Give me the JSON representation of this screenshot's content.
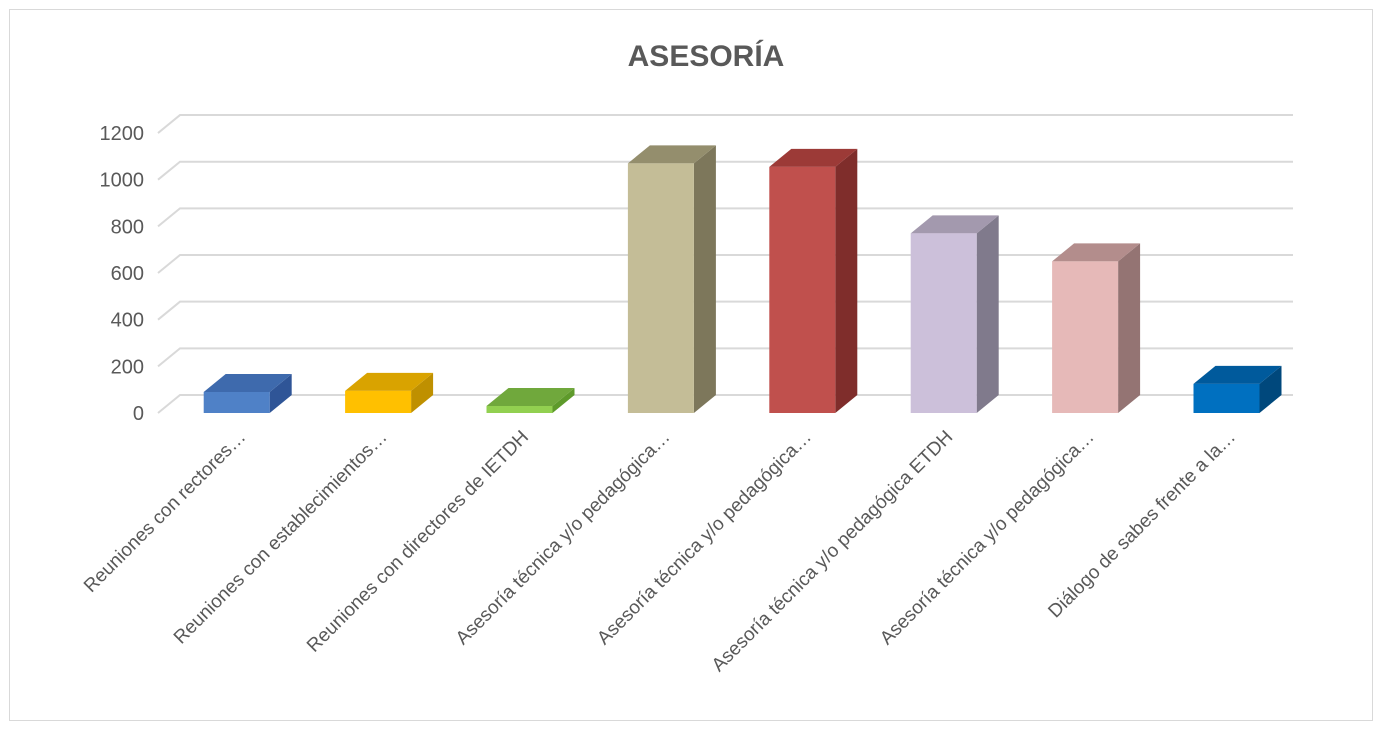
{
  "chart_data": {
    "type": "bar",
    "title": "ASESORÍA",
    "categories": [
      "Reuniones con rectores…",
      "Reuniones con establecimientos…",
      "Reuniones con directores de IETDH",
      "Asesoría técnica y/o pedagógica…",
      "Asesoría técnica y/o pedagógica…",
      "Asesoría técnica y/o pedagógica ETDH",
      "Asesoría técnica y/o pedagógica…",
      "Diálogo de sabes frente a la…"
    ],
    "values": [
      90,
      95,
      30,
      1070,
      1055,
      770,
      650,
      125
    ],
    "ylim": [
      0,
      1200
    ],
    "yticks": [
      0,
      200,
      400,
      600,
      800,
      1000,
      1200
    ],
    "xlabel": "",
    "ylabel": "",
    "grid": true,
    "legend": "none",
    "colors": [
      {
        "front": "#4f81c7",
        "side": "#2f5597",
        "top": "#3e6aad"
      },
      {
        "front": "#ffc000",
        "side": "#bf9000",
        "top": "#d9a300"
      },
      {
        "front": "#92d050",
        "side": "#5e9a2b",
        "top": "#70a83c"
      },
      {
        "front": "#c4bd97",
        "side": "#7d775b",
        "top": "#948e6d"
      },
      {
        "front": "#c0504d",
        "side": "#7f2d2b",
        "top": "#9c3a37"
      },
      {
        "front": "#ccc0da",
        "side": "#807a8c",
        "top": "#a399ae"
      },
      {
        "front": "#e6b9b8",
        "side": "#947473",
        "top": "#b38d8c"
      },
      {
        "front": "#0070c0",
        "side": "#00487c",
        "top": "#005a9c"
      }
    ]
  }
}
